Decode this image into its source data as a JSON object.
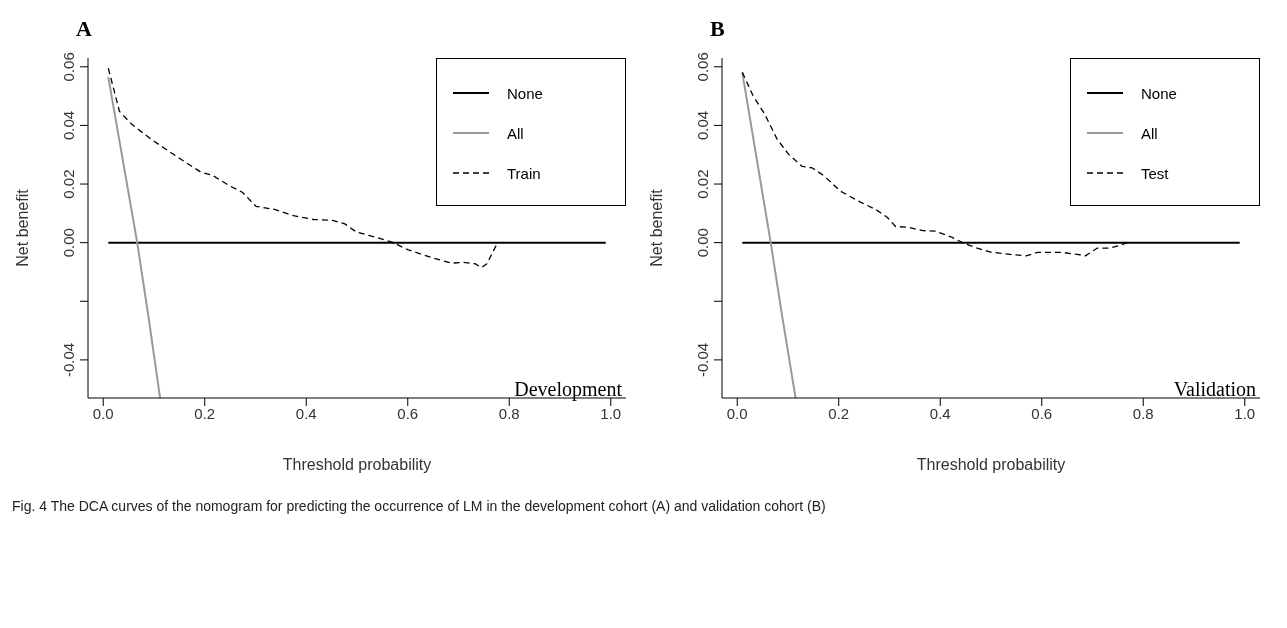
{
  "chart_data": [
    {
      "type": "line",
      "title": "A",
      "xlabel": "Threshold probability",
      "ylabel": "Net benefit",
      "annotations": [
        "Development"
      ],
      "xlim": [
        -0.03,
        1.03
      ],
      "ylim": [
        -0.053,
        0.063
      ],
      "xticks": [
        {
          "value": 0,
          "label": "0.0"
        },
        {
          "value": 0.2,
          "label": "0.2"
        },
        {
          "value": 0.4,
          "label": "0.4"
        },
        {
          "value": 0.6,
          "label": "0.6"
        },
        {
          "value": 0.8,
          "label": "0.8"
        },
        {
          "value": 1,
          "label": "1.0"
        }
      ],
      "yticks": [
        {
          "value": -0.04,
          "label": "-0.04"
        },
        {
          "value": -0.02,
          "label": null
        },
        {
          "value": 0,
          "label": "0.00"
        },
        {
          "value": 0.02,
          "label": "0.02"
        },
        {
          "value": 0.04,
          "label": "0.04"
        },
        {
          "value": 0.06,
          "label": "0.06"
        }
      ],
      "legend": "top right",
      "marker": "none",
      "series": [
        {
          "name": "None",
          "color": "#000000",
          "line_style": "solid",
          "x": [
            0.01,
            0.99
          ],
          "values": [
            0,
            0
          ]
        },
        {
          "name": "All",
          "color": "#999999",
          "line_style": "solid",
          "x": [
            0.01,
            0.067,
            0.09,
            0.112
          ],
          "values": [
            0.0565,
            0,
            -0.0263,
            -0.053
          ]
        },
        {
          "name": "Train",
          "color": "#000000",
          "line_style": "dashed",
          "x": [
            0.01,
            0.032,
            0.055,
            0.094,
            0.149,
            0.192,
            0.215,
            0.25,
            0.274,
            0.301,
            0.336,
            0.375,
            0.414,
            0.452,
            0.476,
            0.499,
            0.538,
            0.569,
            0.6,
            0.647,
            0.686,
            0.71,
            0.733,
            0.745,
            0.756,
            0.776
          ],
          "values": [
            0.0595,
            0.0448,
            0.0406,
            0.0353,
            0.0289,
            0.0241,
            0.023,
            0.0193,
            0.0172,
            0.0124,
            0.0114,
            0.0092,
            0.0079,
            0.0076,
            0.0064,
            0.0036,
            0.0018,
            0.0002,
            -0.0024,
            -0.0051,
            -0.007,
            -0.0067,
            -0.0072,
            -0.0085,
            -0.0072,
            -0.0003
          ]
        }
      ]
    },
    {
      "type": "line",
      "title": "B",
      "xlabel": "Threshold probability",
      "ylabel": "Net benefit",
      "annotations": [
        "Validation",
        "Fig. 4  The DCA curves of the nomogram for predicting the occurrence of LM in the development cohort (A) and validation cohort (B)"
      ],
      "xlim": [
        -0.03,
        1.03
      ],
      "ylim": [
        -0.053,
        0.063
      ],
      "xticks": [
        {
          "value": 0,
          "label": "0.0"
        },
        {
          "value": 0.2,
          "label": "0.2"
        },
        {
          "value": 0.4,
          "label": "0.4"
        },
        {
          "value": 0.6,
          "label": "0.6"
        },
        {
          "value": 0.8,
          "label": "0.8"
        },
        {
          "value": 1,
          "label": "1.0"
        }
      ],
      "yticks": [
        {
          "value": -0.04,
          "label": "-0.04"
        },
        {
          "value": -0.02,
          "label": null
        },
        {
          "value": 0,
          "label": "0.00"
        },
        {
          "value": 0.02,
          "label": "0.02"
        },
        {
          "value": 0.04,
          "label": "0.04"
        },
        {
          "value": 0.06,
          "label": "0.06"
        }
      ],
      "legend": "top right",
      "marker": "none",
      "series": [
        {
          "name": "None",
          "color": "#000000",
          "line_style": "solid",
          "x": [
            0.01,
            0.99
          ],
          "values": [
            0,
            0
          ]
        },
        {
          "name": "All",
          "color": "#999999",
          "line_style": "solid",
          "x": [
            0.01,
            0.066,
            0.089,
            0.115
          ],
          "values": [
            0.058,
            0,
            -0.0256,
            -0.053
          ]
        },
        {
          "name": "Test",
          "color": "#000000",
          "line_style": "dashed",
          "x": [
            0.01,
            0.031,
            0.054,
            0.078,
            0.101,
            0.128,
            0.148,
            0.171,
            0.203,
            0.242,
            0.273,
            0.296,
            0.312,
            0.335,
            0.366,
            0.39,
            0.421,
            0.444,
            0.468,
            0.499,
            0.538,
            0.569,
            0.592,
            0.639,
            0.67,
            0.686,
            0.709,
            0.733,
            0.756,
            0.768
          ],
          "values": [
            0.0581,
            0.0502,
            0.0439,
            0.0355,
            0.0302,
            0.026,
            0.0255,
            0.0228,
            0.0176,
            0.0139,
            0.0113,
            0.0086,
            0.0055,
            0.0053,
            0.0041,
            0.0039,
            0.002,
            0,
            -0.0016,
            -0.0032,
            -0.004,
            -0.0045,
            -0.0033,
            -0.0033,
            -0.004,
            -0.0045,
            -0.0019,
            -0.0019,
            -0.0008,
            0
          ]
        }
      ]
    }
  ]
}
